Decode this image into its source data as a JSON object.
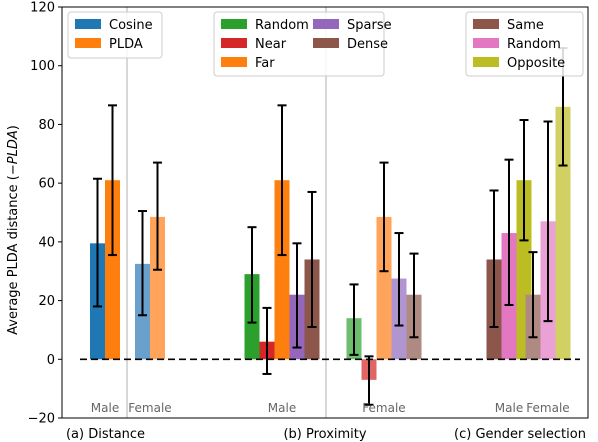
{
  "chart_data": {
    "type": "bar",
    "ylabel_prefix": "Average PLDA distance (",
    "ylabel_math": "−PLDA",
    "ylabel_suffix": ")",
    "ylim": [
      -20,
      120
    ],
    "yticks": [
      -20,
      0,
      20,
      40,
      60,
      80,
      100,
      120
    ],
    "grid": "vertical group separators only",
    "groups": [
      {
        "label": "(a) Distance",
        "legend": {
          "entries": [
            {
              "name": "Cosine",
              "color": "#1f77b4"
            },
            {
              "name": "PLDA",
              "color": "#ff7f0e"
            }
          ]
        },
        "subgroups": [
          {
            "label": "Male",
            "bars": [
              {
                "series": "Cosine",
                "value": 39.5,
                "err_low": 18.0,
                "err_high": 61.5,
                "color": "#1f77b4"
              },
              {
                "series": "PLDA",
                "value": 61.0,
                "err_low": 35.5,
                "err_high": 86.5,
                "color": "#ff7f0e"
              }
            ]
          },
          {
            "label": "Female",
            "bars": [
              {
                "series": "Cosine",
                "value": 32.5,
                "err_low": 15.0,
                "err_high": 50.5,
                "color": "#6aa0cc"
              },
              {
                "series": "PLDA",
                "value": 48.5,
                "err_low": 30.5,
                "err_high": 67.0,
                "color": "#ffa45a"
              }
            ]
          }
        ]
      },
      {
        "label": "(b) Proximity",
        "legend": {
          "entries": [
            {
              "name": "Random",
              "color": "#2ca02c"
            },
            {
              "name": "Near",
              "color": "#d62728"
            },
            {
              "name": "Far",
              "color": "#ff7f0e"
            },
            {
              "name": "Sparse",
              "color": "#9467bd"
            },
            {
              "name": "Dense",
              "color": "#8c564b"
            }
          ]
        },
        "subgroups": [
          {
            "label": "Male",
            "bars": [
              {
                "series": "Random",
                "value": 29.0,
                "err_low": 12.5,
                "err_high": 45.0,
                "color": "#2ca02c"
              },
              {
                "series": "Near",
                "value": 6.0,
                "err_low": -5.0,
                "err_high": 17.5,
                "color": "#d62728"
              },
              {
                "series": "Far",
                "value": 61.0,
                "err_low": 35.5,
                "err_high": 86.5,
                "color": "#ff7f0e"
              },
              {
                "series": "Sparse",
                "value": 22.0,
                "err_low": 4.0,
                "err_high": 39.5,
                "color": "#9467bd"
              },
              {
                "series": "Dense",
                "value": 34.0,
                "err_low": 11.0,
                "err_high": 57.0,
                "color": "#8c564b"
              }
            ]
          },
          {
            "label": "Female",
            "bars": [
              {
                "series": "Random",
                "value": 14.0,
                "err_low": 1.5,
                "err_high": 25.5,
                "color": "#6cbd6c"
              },
              {
                "series": "Near",
                "value": -7.0,
                "err_low": -15.5,
                "err_high": 1.0,
                "color": "#e26566"
              },
              {
                "series": "Far",
                "value": 48.5,
                "err_low": 30.0,
                "err_high": 67.0,
                "color": "#ffa45a"
              },
              {
                "series": "Sparse",
                "value": 27.5,
                "err_low": 11.5,
                "err_high": 43.0,
                "color": "#b195d1"
              },
              {
                "series": "Dense",
                "value": 22.0,
                "err_low": 7.5,
                "err_high": 36.0,
                "color": "#ae8a83"
              }
            ]
          }
        ]
      },
      {
        "label": "(c) Gender selection",
        "legend": {
          "entries": [
            {
              "name": "Same",
              "color": "#8c564b"
            },
            {
              "name": "Random",
              "color": "#e377c2"
            },
            {
              "name": "Opposite",
              "color": "#bcbd22"
            }
          ]
        },
        "subgroups": [
          {
            "label": "Male",
            "bars": [
              {
                "series": "Same",
                "value": 34.0,
                "err_low": 11.0,
                "err_high": 57.5,
                "color": "#8c564b"
              },
              {
                "series": "Random",
                "value": 43.0,
                "err_low": 18.5,
                "err_high": 68.0,
                "color": "#e377c2"
              },
              {
                "series": "Opposite",
                "value": 61.0,
                "err_low": 40.5,
                "err_high": 81.5,
                "color": "#bcbd22"
              }
            ]
          },
          {
            "label": "Female",
            "bars": [
              {
                "series": "Same",
                "value": 22.0,
                "err_low": 7.5,
                "err_high": 36.5,
                "color": "#ae8a83"
              },
              {
                "series": "Random",
                "value": 47.0,
                "err_low": 13.0,
                "err_high": 81.0,
                "color": "#eba0d6"
              },
              {
                "series": "Opposite",
                "value": 86.0,
                "err_low": 66.0,
                "err_high": 106.0,
                "color": "#d0d063"
              }
            ]
          }
        ]
      }
    ]
  }
}
